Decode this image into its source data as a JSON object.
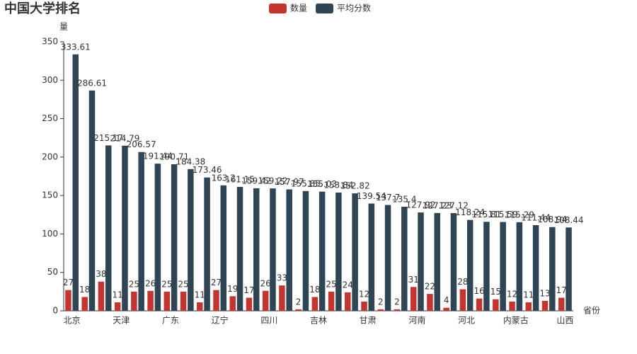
{
  "chart_data": {
    "type": "bar",
    "title": "中国大学排名",
    "x_label": "省份",
    "y_label": "量",
    "categories": [
      "北京",
      null,
      null,
      "天津",
      null,
      null,
      "广东",
      null,
      null,
      "辽宁",
      null,
      null,
      "四川",
      null,
      null,
      "吉林",
      null,
      null,
      "甘肃",
      null,
      null,
      "河南",
      null,
      null,
      "河北",
      null,
      null,
      "内蒙古",
      null,
      null,
      "山西"
    ],
    "series": [
      {
        "name": "数量",
        "color": "#c23531",
        "values": [
          27,
          18,
          38,
          11,
          25,
          26,
          25,
          25,
          11,
          27,
          19,
          17,
          26,
          33,
          2,
          18,
          25,
          24,
          12,
          2,
          2,
          31,
          22,
          4,
          28,
          16,
          15,
          12,
          11,
          13,
          17
        ]
      },
      {
        "name": "平均分数",
        "color": "#2f4554",
        "values": [
          333.61,
          286.61,
          215.17,
          214.79,
          206.57,
          191.44,
          190.71,
          184.38,
          173.46,
          163.2,
          161.15,
          159.42,
          159.22,
          157.97,
          155.85,
          155.03,
          153.84,
          152.82,
          139.54,
          137.7,
          135.4,
          127.92,
          127.23,
          127.12,
          118.24,
          115.81,
          115.59,
          115.29,
          111.44,
          108.94,
          108.44
        ]
      }
    ],
    "ylim": [
      0,
      350
    ],
    "yticks": [
      0,
      50,
      100,
      150,
      200,
      250,
      300,
      350
    ],
    "grid": false,
    "legend": "top"
  }
}
